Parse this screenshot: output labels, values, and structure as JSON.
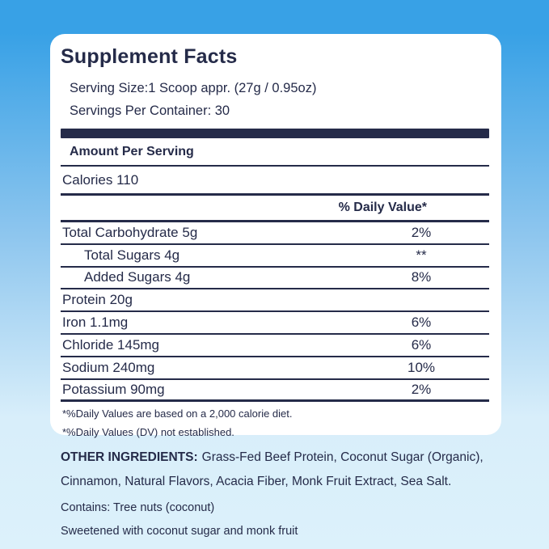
{
  "label": {
    "title": "Supplement Facts",
    "serving_size": "Serving Size:1 Scoop appr. (27g / 0.95oz)",
    "servings_per_container": "Servings Per Container: 30",
    "amount_per_serving": "Amount Per Serving",
    "calories": "Calories 110",
    "daily_value_header": "% Daily Value*",
    "rows": [
      {
        "name": "Total Carbohydrate 5g",
        "value": "2%",
        "indent": false
      },
      {
        "name": "Total Sugars 4g",
        "value": "**",
        "indent": true
      },
      {
        "name": "Added Sugars 4g",
        "value": "8%",
        "indent": true
      },
      {
        "name": "Protein 20g",
        "value": "",
        "indent": false
      },
      {
        "name": "Iron 1.1mg",
        "value": "6%",
        "indent": false
      },
      {
        "name": "Chloride 145mg",
        "value": "6%",
        "indent": false
      },
      {
        "name": "Sodium 240mg",
        "value": "10%",
        "indent": false
      },
      {
        "name": "Potassium 90mg",
        "value": "2%",
        "indent": false
      }
    ],
    "footnotes": [
      "*%Daily Values are based on a 2,000 calorie diet.",
      "*%Daily Values (DV) not established."
    ]
  },
  "below_label": {
    "other_ingredients_label": "OTHER INGREDIENTS:",
    "other_ingredients_list": "Grass-Fed Beef Protein, Coconut Sugar (Organic), Cinnamon, Natural Flavors, Acacia Fiber, Monk Fruit Extract, Sea Salt.",
    "contains": "Contains: Tree nuts (coconut)",
    "sweetened": "Sweetened with coconut sugar and monk fruit"
  },
  "colors": {
    "navy_text": "#252b49",
    "background_top": "#38a1e6",
    "background_bottom": "#d8eefa",
    "card_background": "#ffffff"
  }
}
